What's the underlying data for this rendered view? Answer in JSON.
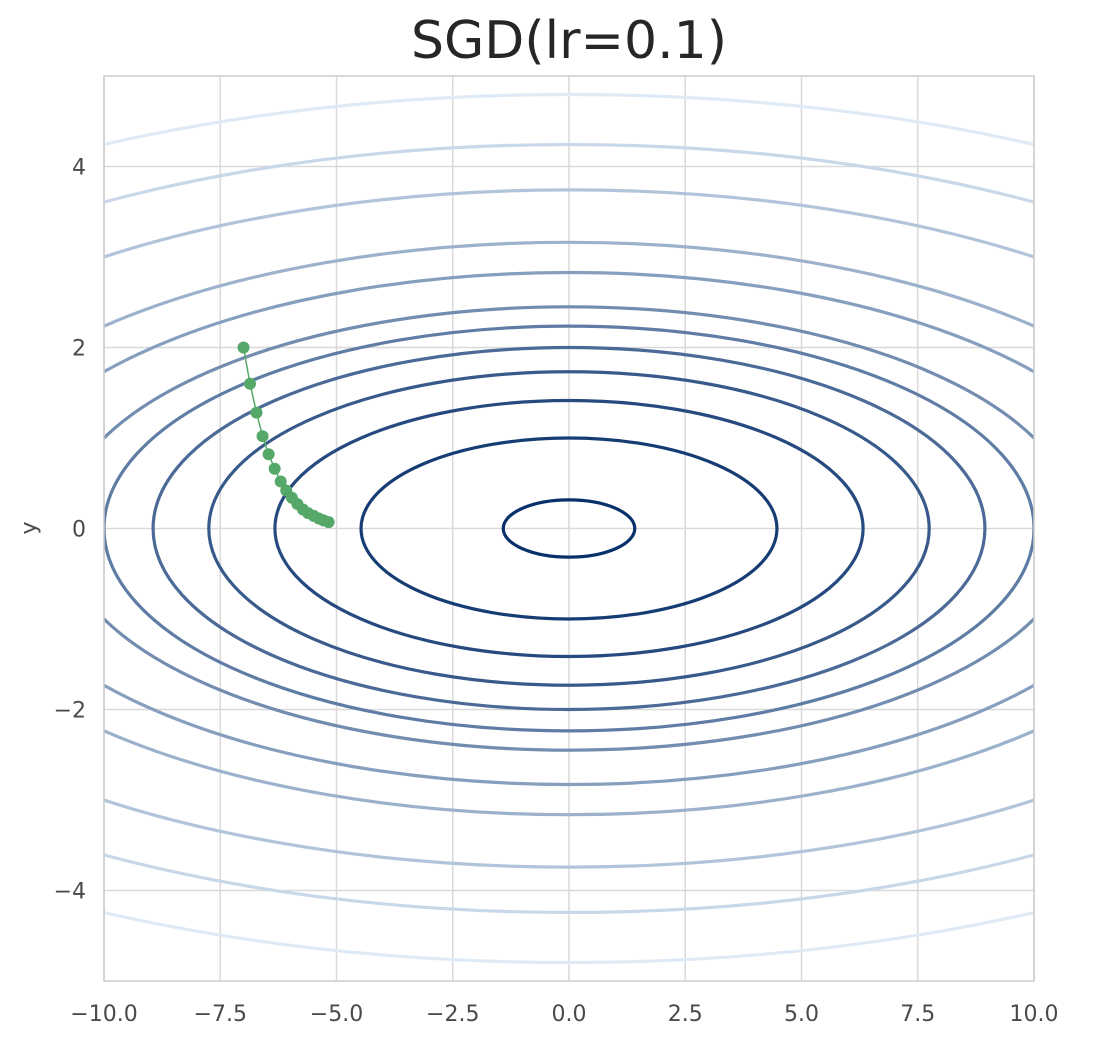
{
  "chart_data": {
    "type": "contour",
    "title": "SGD(lr=0.1)",
    "xlabel": "",
    "ylabel": "y",
    "xlim": [
      -10,
      10
    ],
    "ylim": [
      -5,
      5
    ],
    "grid": true,
    "x_ticks": [
      -10,
      -7.5,
      -5,
      -2.5,
      0,
      2.5,
      5,
      7.5,
      10
    ],
    "x_tick_labels": [
      "−10.0",
      "−7.5",
      "−5.0",
      "−2.5",
      "0.0",
      "2.5",
      "5.0",
      "7.5",
      "10.0"
    ],
    "y_ticks": [
      4,
      2,
      0,
      -2,
      -4
    ],
    "y_tick_labels": [
      "4",
      "2",
      "0",
      "−2",
      "−4"
    ],
    "contours": {
      "function": "x^2/20 + y^2",
      "colormap": "Blues_r",
      "levels": [
        0.1,
        1,
        2,
        3,
        4,
        5,
        6,
        8,
        10,
        14,
        18,
        23
      ]
    },
    "series": [
      {
        "marker": "circle",
        "color": "#55a868",
        "x": [
          -7.0,
          -6.86,
          -6.72,
          -6.59,
          -6.46,
          -6.33,
          -6.2,
          -6.08,
          -5.96,
          -5.84,
          -5.72,
          -5.61,
          -5.49,
          -5.38,
          -5.28,
          -5.17
        ],
        "y": [
          2.0,
          1.6,
          1.28,
          1.02,
          0.82,
          0.66,
          0.52,
          0.42,
          0.34,
          0.27,
          0.21,
          0.17,
          0.14,
          0.11,
          0.09,
          0.07
        ]
      }
    ]
  }
}
